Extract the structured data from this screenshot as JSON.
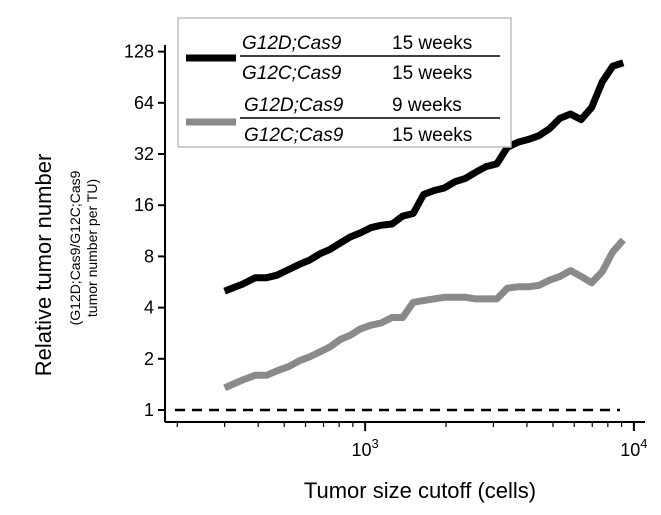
{
  "chart_data": {
    "type": "line",
    "xlabel": "Tumor size cutoff (cells)",
    "ylabel": "Relative tumor number",
    "ylabel_sub_1": "(G12D;Cas9/G12C;Cas9",
    "ylabel_sub_2": "tumor number per TU)",
    "x_scale": "log10",
    "y_scale": "log2",
    "xlim": [
      180,
      11000
    ],
    "ylim": [
      0.85,
      140
    ],
    "x_ticks": [
      1000,
      10000
    ],
    "x_tick_labels": [
      {
        "base": "10",
        "exp": "3"
      },
      {
        "base": "10",
        "exp": "4"
      }
    ],
    "y_ticks": [
      1,
      2,
      4,
      8,
      16,
      32,
      64,
      128
    ],
    "y_tick_labels": [
      "1",
      "2",
      "4",
      "8",
      "16",
      "32",
      "64",
      "128"
    ],
    "grid": false,
    "legend_position": "top-right",
    "reference_line": {
      "y": 1,
      "style": "dashed",
      "color": "#000000"
    },
    "series": [
      {
        "label_num": "G12D;Cas9",
        "label_num_time": "15 weeks",
        "label_den": "G12C;Cas9",
        "label_den_time": "15 weeks",
        "color": "#000000",
        "x": [
          300,
          350,
          390,
          430,
          470,
          520,
          570,
          620,
          680,
          740,
          810,
          880,
          960,
          1050,
          1150,
          1260,
          1380,
          1510,
          1650,
          1800,
          1970,
          2160,
          2360,
          2580,
          2820,
          3090,
          3380,
          3700,
          4050,
          4430,
          4850,
          5310,
          5810,
          6360,
          6960,
          7620,
          8340,
          9130
        ],
        "y": [
          5.0,
          5.5,
          6.0,
          6.0,
          6.2,
          6.7,
          7.2,
          7.6,
          8.3,
          8.8,
          9.6,
          10.4,
          11.0,
          11.8,
          12.2,
          12.4,
          13.8,
          14.3,
          18.5,
          19.5,
          20.2,
          22.0,
          23.0,
          25.0,
          27.0,
          28.0,
          35.0,
          37.5,
          39.0,
          41.0,
          45.0,
          52.0,
          55.0,
          51.0,
          60.0,
          85.0,
          105.0,
          110.0
        ]
      },
      {
        "label_num": "G12D;Cas9",
        "label_num_time": "9 weeks",
        "label_den": "G12C;Cas9",
        "label_den_time": "15 weeks",
        "color": "#8a8a8a",
        "x": [
          300,
          350,
          390,
          430,
          470,
          520,
          570,
          620,
          680,
          740,
          810,
          880,
          960,
          1050,
          1150,
          1260,
          1380,
          1510,
          1650,
          1800,
          1970,
          2160,
          2360,
          2580,
          2820,
          3090,
          3380,
          3700,
          4050,
          4430,
          4850,
          5310,
          5810,
          6360,
          6960,
          7620,
          8340,
          9130
        ],
        "y": [
          1.35,
          1.5,
          1.6,
          1.6,
          1.7,
          1.8,
          1.95,
          2.05,
          2.2,
          2.35,
          2.6,
          2.75,
          3.0,
          3.15,
          3.25,
          3.5,
          3.5,
          4.3,
          4.4,
          4.5,
          4.6,
          4.6,
          4.6,
          4.5,
          4.5,
          4.5,
          5.2,
          5.3,
          5.3,
          5.4,
          5.8,
          6.1,
          6.6,
          6.1,
          5.6,
          6.5,
          8.5,
          10.0
        ]
      }
    ]
  }
}
